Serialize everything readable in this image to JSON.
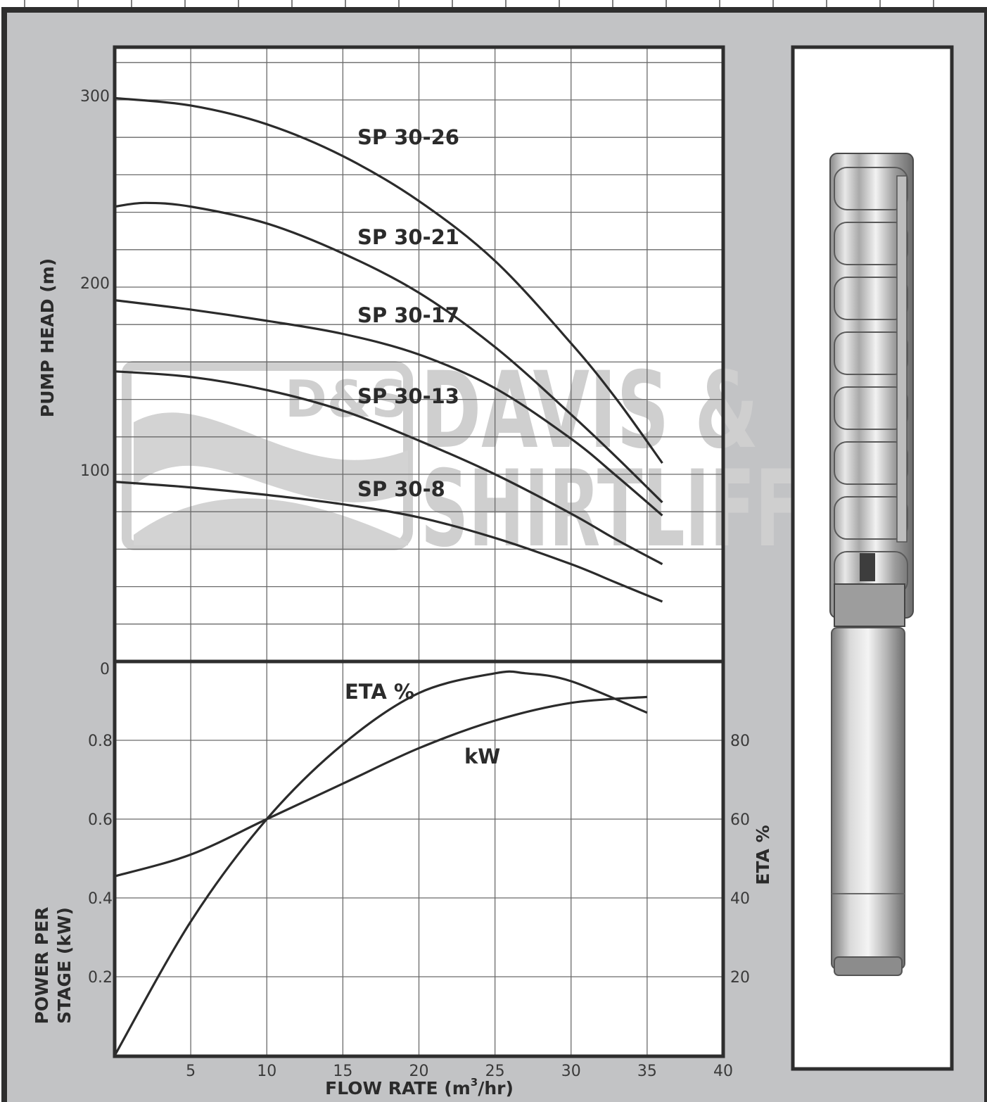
{
  "chart_data": [
    {
      "type": "line",
      "panel": "pump-head",
      "xlabel": "FLOW RATE (m³/hr)",
      "ylabel": "PUMP HEAD (m)",
      "xlim": [
        0,
        40
      ],
      "ylim": [
        0,
        325
      ],
      "x_ticks": [
        "5",
        "10",
        "15",
        "20",
        "25",
        "30",
        "35",
        "40"
      ],
      "y_ticks": [
        {
          "value": 300,
          "label": "300"
        },
        {
          "value": 200,
          "label": "200"
        },
        {
          "value": 100,
          "label": "100"
        },
        {
          "value": 0,
          "label": "0"
        }
      ],
      "grid": true,
      "series": [
        {
          "name": "SP 30-26",
          "x": [
            0,
            5,
            10,
            15,
            20,
            25,
            30,
            33,
            36
          ],
          "y": [
            301,
            297,
            287,
            270,
            246,
            214,
            170,
            140,
            106
          ]
        },
        {
          "name": "SP 30-21",
          "x": [
            0,
            2,
            5,
            10,
            15,
            20,
            25,
            30,
            33,
            36
          ],
          "y": [
            243,
            245,
            243,
            234,
            218,
            197,
            168,
            132,
            109,
            85
          ]
        },
        {
          "name": "SP 30-17",
          "x": [
            0,
            5,
            10,
            15,
            20,
            25,
            30,
            33,
            36
          ],
          "y": [
            193,
            188,
            182,
            175,
            164,
            146,
            119,
            99,
            78
          ]
        },
        {
          "name": "SP 30-13",
          "x": [
            0,
            5,
            10,
            15,
            20,
            25,
            30,
            33,
            36
          ],
          "y": [
            155,
            152,
            145,
            134,
            118,
            100,
            79,
            65,
            52
          ]
        },
        {
          "name": "SP 30-8",
          "x": [
            0,
            5,
            10,
            15,
            20,
            25,
            30,
            33,
            36
          ],
          "y": [
            96,
            93,
            89,
            84,
            77,
            66,
            52,
            42,
            32
          ]
        }
      ]
    },
    {
      "type": "line",
      "panel": "power-efficiency",
      "xlabel": "FLOW RATE (m³/hr)",
      "ylabel": "POWER PER STAGE (kW)",
      "y2label": "ETA %",
      "xlim": [
        0,
        40
      ],
      "ylim": [
        0,
        1.0
      ],
      "y2lim": [
        0,
        100
      ],
      "y_ticks": [
        "0.2",
        "0.4",
        "0.6",
        "0.8"
      ],
      "y2_ticks": [
        "20",
        "40",
        "60",
        "80"
      ],
      "grid": true,
      "series": [
        {
          "name": "kW",
          "axis": "left",
          "x": [
            0,
            5,
            10,
            15,
            20,
            25,
            30,
            35
          ],
          "y": [
            0.455,
            0.51,
            0.6,
            0.69,
            0.78,
            0.85,
            0.895,
            0.91
          ]
        },
        {
          "name": "ETA %",
          "axis": "right",
          "x": [
            0,
            5,
            10,
            15,
            20,
            25,
            27,
            30,
            35
          ],
          "y": [
            0,
            34,
            60,
            79,
            92,
            97,
            97,
            95,
            87
          ]
        }
      ]
    }
  ],
  "labels": {
    "curves": [
      "SP 30-26",
      "SP 30-21",
      "SP 30-17",
      "SP 30-13",
      "SP 30-8"
    ],
    "eta": "ETA %",
    "kw": "kW",
    "ylabel_top": "PUMP HEAD (m)",
    "ylabel_bottom_line1": "POWER PER",
    "ylabel_bottom_line2": "STAGE (kW)",
    "ylabel_right": "ETA %",
    "xlabel_main": "FLOW RATE (m",
    "xlabel_sup": "3",
    "xlabel_end": "/hr)"
  },
  "watermark": {
    "badge": "D&S",
    "line1": "DAVIS &",
    "line2": "SHIRTLIFF"
  },
  "colors": {
    "background": "#c2c3c5",
    "plot_area": "#ffffff",
    "frame": "#2e2e2e",
    "grid": "#6a6a6a",
    "curve": "#2b2b2b",
    "watermark": "#cfcfcf"
  }
}
